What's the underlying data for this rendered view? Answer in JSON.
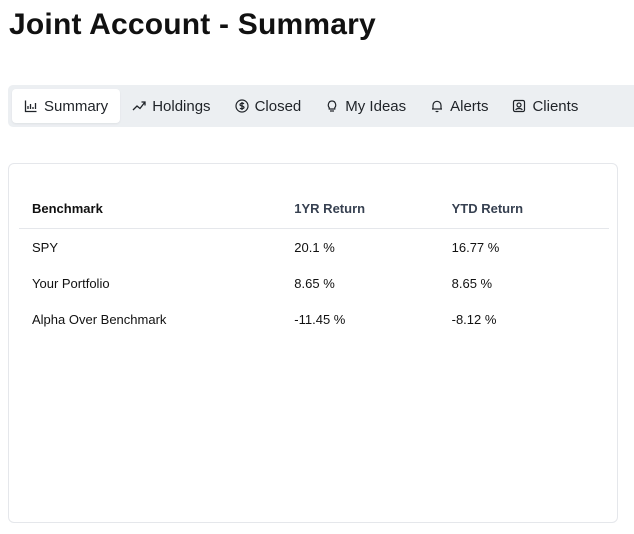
{
  "page": {
    "title": "Joint Account - Summary"
  },
  "tabs": [
    {
      "label": "Summary",
      "icon": "chart-icon",
      "active": true
    },
    {
      "label": "Holdings",
      "icon": "trend-icon",
      "active": false
    },
    {
      "label": "Closed",
      "icon": "dollar-circle-icon",
      "active": false
    },
    {
      "label": "My Ideas",
      "icon": "lightbulb-icon",
      "active": false
    },
    {
      "label": "Alerts",
      "icon": "bell-icon",
      "active": false
    },
    {
      "label": "Clients",
      "icon": "contact-icon",
      "active": false
    }
  ],
  "benchmark_table": {
    "headers": [
      "Benchmark",
      "1YR Return",
      "YTD Return"
    ],
    "rows": [
      {
        "name": "SPY",
        "one_year": "20.1 %",
        "ytd": "16.77 %",
        "one_year_sign": "pos",
        "ytd_sign": "pos"
      },
      {
        "name": "Your Portfolio",
        "one_year": "8.65 %",
        "ytd": "8.65 %",
        "one_year_sign": "pos",
        "ytd_sign": "pos"
      },
      {
        "name": "Alpha Over Benchmark",
        "one_year": "-11.45 %",
        "ytd": "-8.12 %",
        "one_year_sign": "neg",
        "ytd_sign": "neg"
      }
    ]
  },
  "colors": {
    "positive": "#22c55e",
    "negative": "#ef4b6f",
    "tabbar_bg": "#eceff2"
  }
}
